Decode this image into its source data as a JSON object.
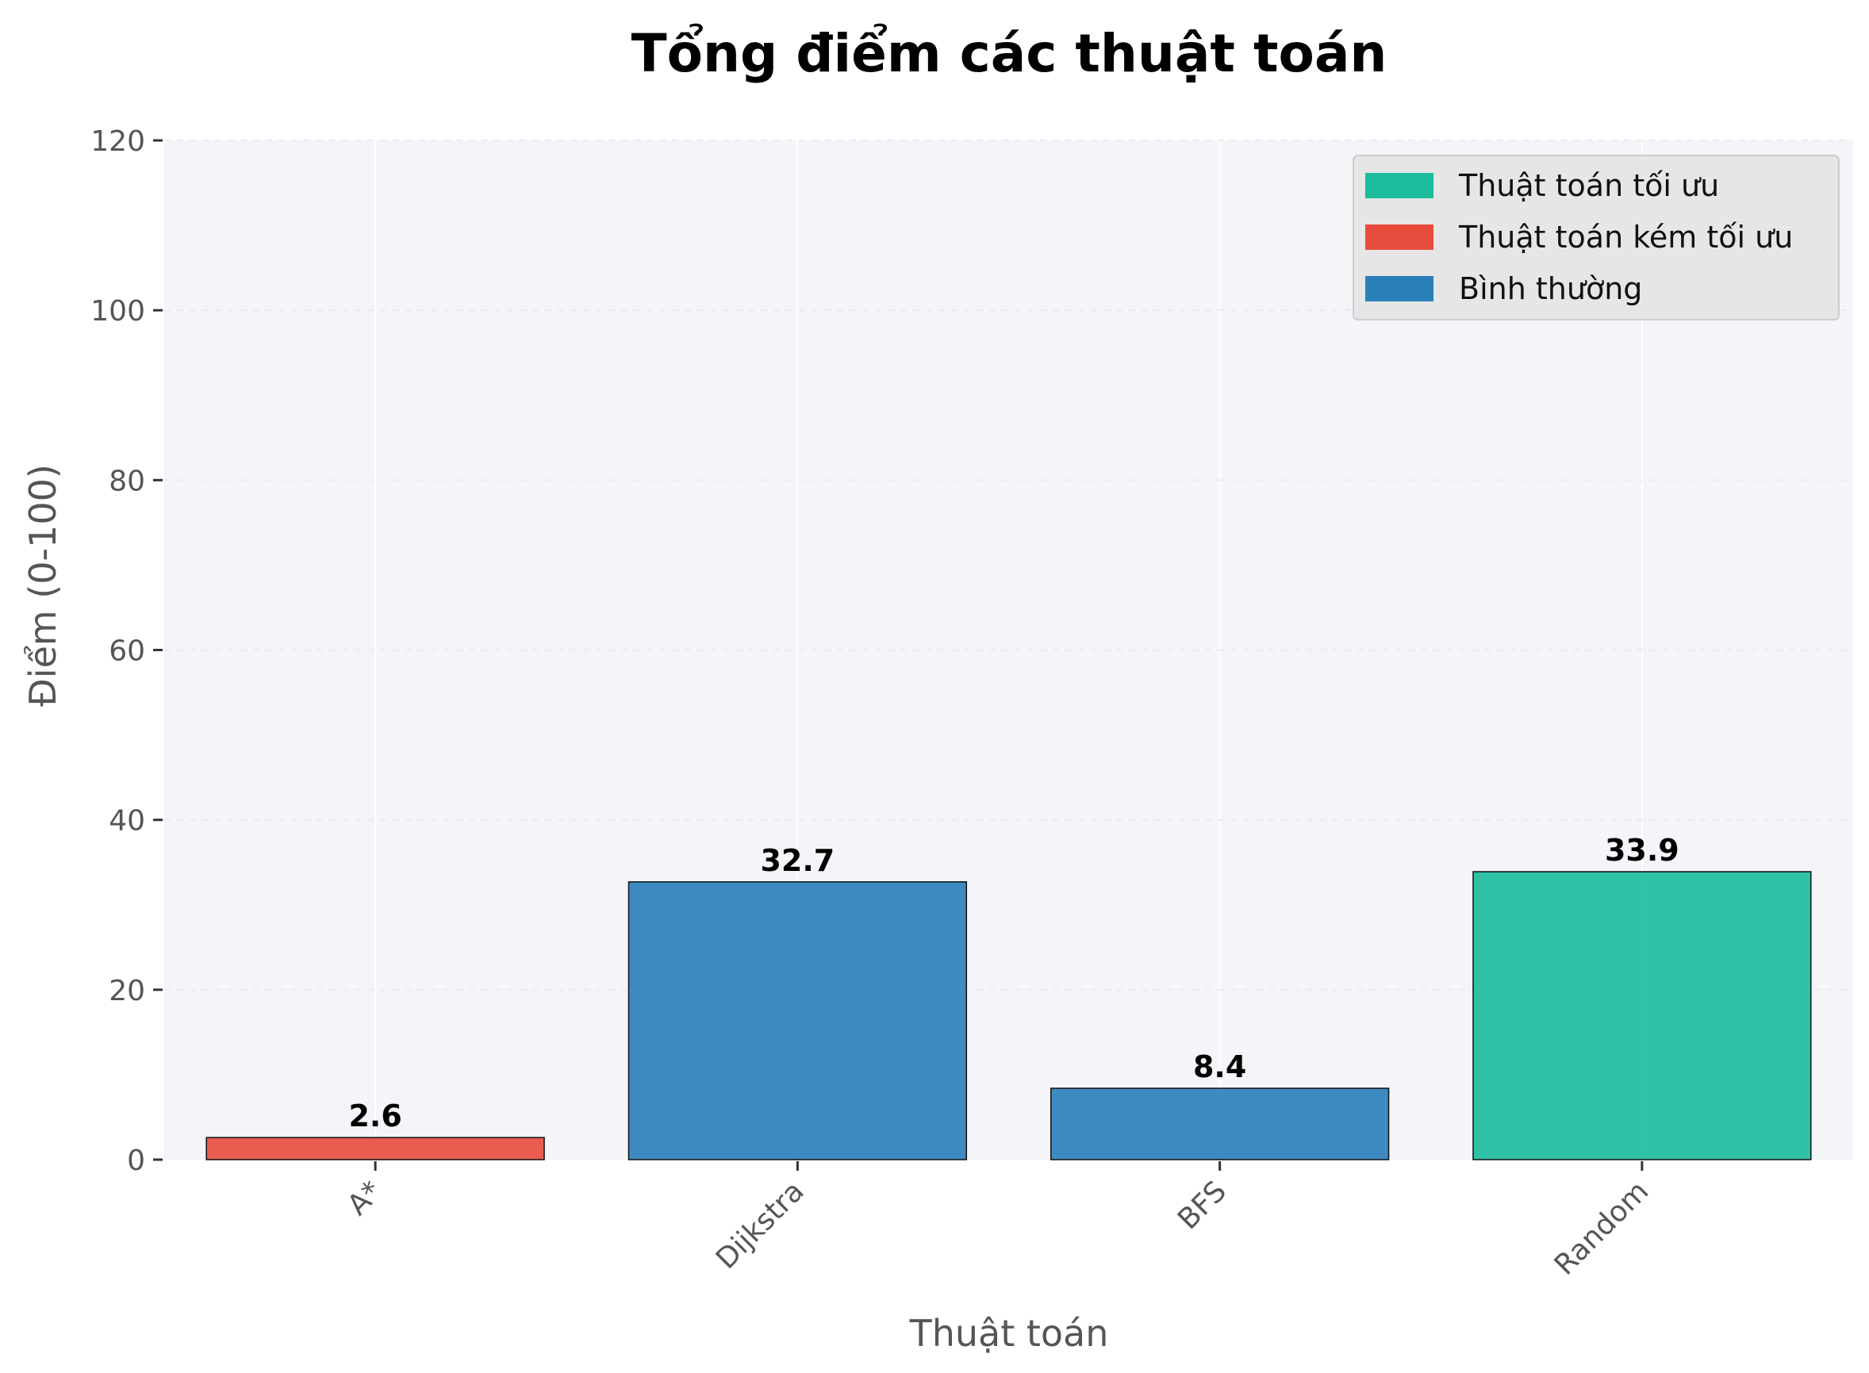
{
  "chart_data": {
    "type": "bar",
    "title": "Tổng điểm các thuật toán",
    "xlabel": "Thuật toán",
    "ylabel": "Điểm (0-100)",
    "categories": [
      "A*",
      "Dijkstra",
      "BFS",
      "Random"
    ],
    "values": [
      2.6,
      32.7,
      8.4,
      33.9
    ],
    "value_labels": [
      "2.6",
      "32.7",
      "8.4",
      "33.9"
    ],
    "bar_groups": [
      "kem",
      "binh",
      "binh",
      "toi"
    ],
    "ylim": [
      0,
      120
    ],
    "yticks": [
      0,
      20,
      40,
      60,
      80,
      100,
      120
    ],
    "ytick_labels": [
      "0",
      "20",
      "40",
      "60",
      "80",
      "100",
      "120"
    ],
    "grid": true,
    "legend_position": "top-right",
    "legend": [
      {
        "key": "toi",
        "label": "Thuật toán tối ưu",
        "color": "#1abc9c"
      },
      {
        "key": "kem",
        "label": "Thuật toán kém tối ưu",
        "color": "#e74c3c"
      },
      {
        "key": "binh",
        "label": "Bình thường",
        "color": "#2980b9"
      }
    ],
    "colors": {
      "plot_background": "#f4f5f9",
      "grid": "#ffffff",
      "axis_text": "#555555"
    }
  }
}
